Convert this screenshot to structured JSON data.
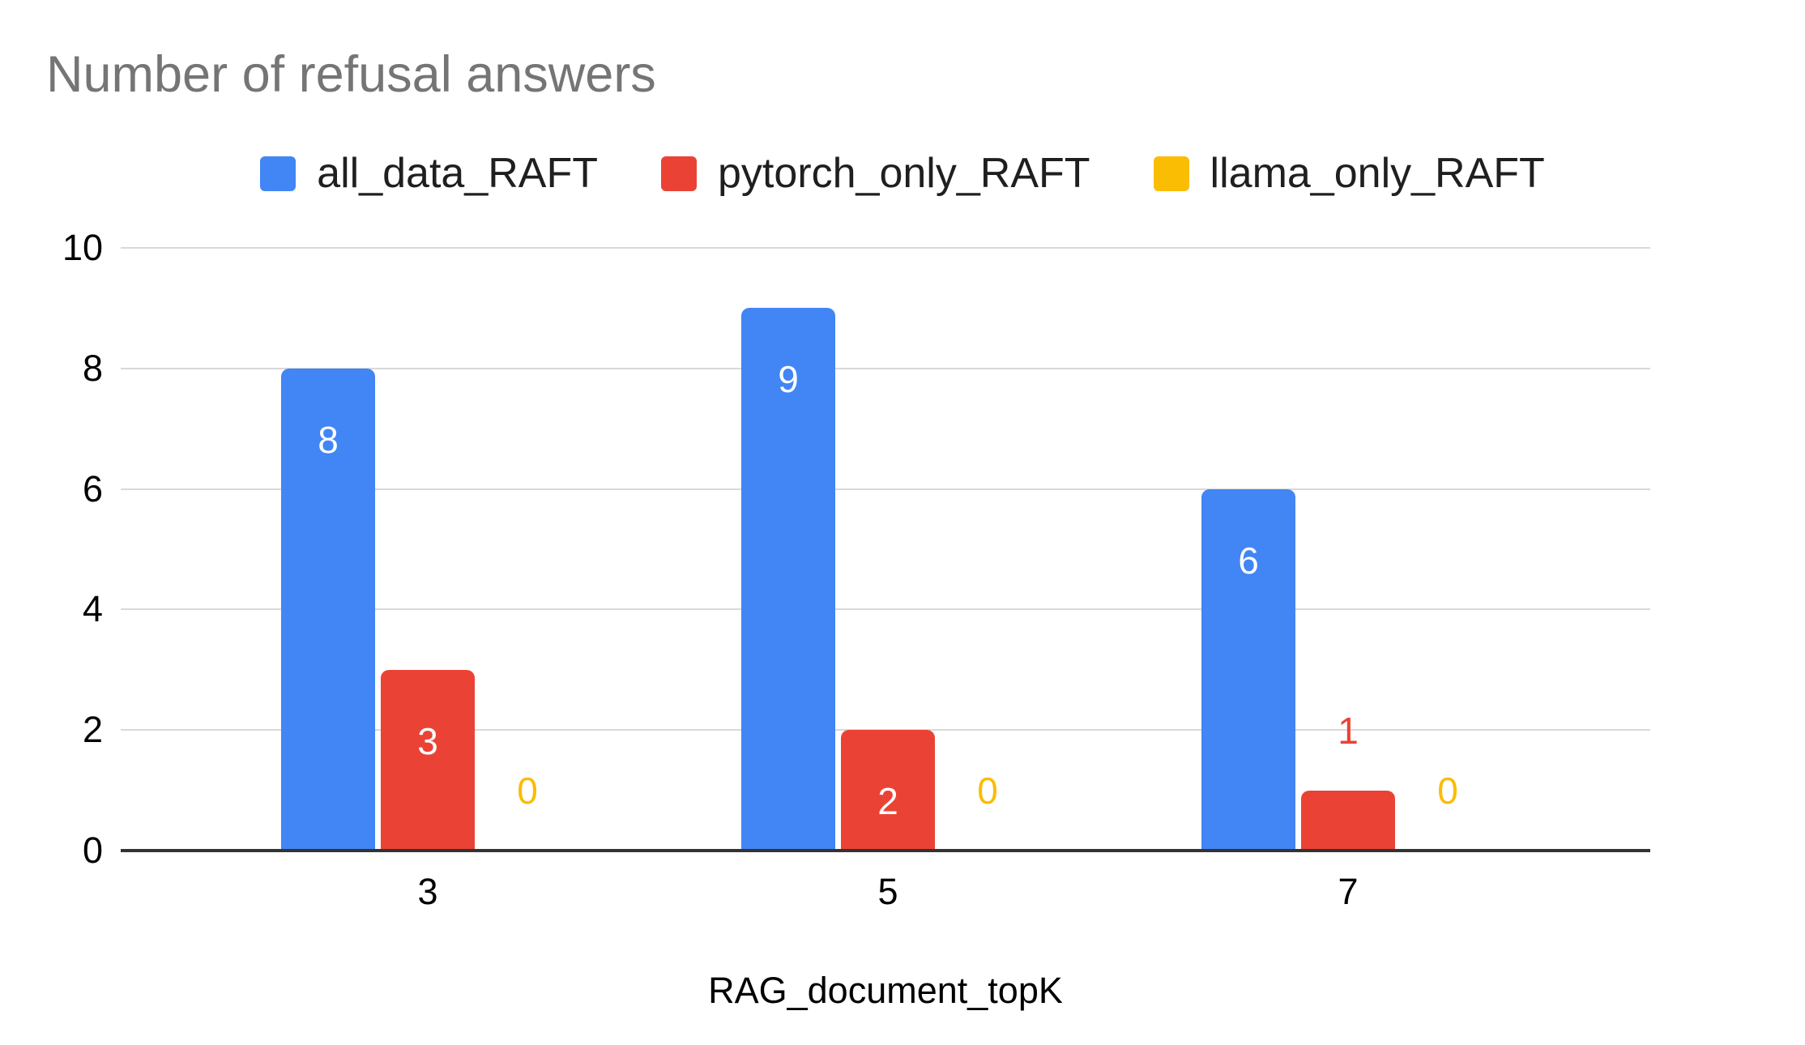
{
  "title": "Number of refusal answers",
  "legend": {
    "items": [
      {
        "label": "all_data_RAFT",
        "color": "#4285F4"
      },
      {
        "label": "pytorch_only_RAFT",
        "color": "#EA4335"
      },
      {
        "label": "llama_only_RAFT",
        "color": "#FBBC04"
      }
    ]
  },
  "x_axis": {
    "title": "RAG_document_topK",
    "categories": [
      "3",
      "5",
      "7"
    ]
  },
  "y_axis": {
    "ticks": [
      "0",
      "2",
      "4",
      "6",
      "8",
      "10"
    ]
  },
  "chart_data": {
    "type": "bar",
    "title": "Number of refusal answers",
    "categories": [
      "3",
      "5",
      "7"
    ],
    "series": [
      {
        "name": "all_data_RAFT",
        "color": "#4285F4",
        "values": [
          8,
          9,
          6
        ]
      },
      {
        "name": "pytorch_only_RAFT",
        "color": "#EA4335",
        "values": [
          3,
          2,
          1
        ]
      },
      {
        "name": "llama_only_RAFT",
        "color": "#FBBC04",
        "values": [
          0,
          0,
          0
        ]
      }
    ],
    "data_labels": [
      [
        "8",
        "9",
        "6"
      ],
      [
        "3",
        "2",
        "1"
      ],
      [
        "0",
        "0",
        "0"
      ]
    ],
    "xlabel": "RAG_document_topK",
    "ylabel": "",
    "ylim": [
      0,
      10
    ],
    "yticks": [
      0,
      2,
      4,
      6,
      8,
      10
    ],
    "grid": true,
    "legend_position": "top",
    "colors": {
      "title_text": "#757575",
      "axis_text": "#000000",
      "gridline": "#d9d9d9",
      "baseline": "#333333",
      "inside_label": "#ffffff",
      "background": "#ffffff"
    }
  }
}
